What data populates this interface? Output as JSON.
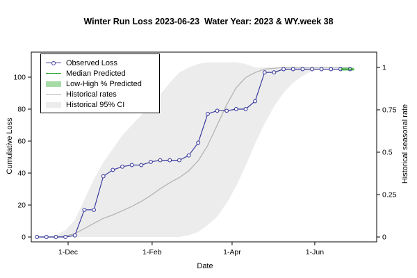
{
  "colors": {
    "observed": "#3b3b9f",
    "median": "#1f9d1f",
    "low_high": "#a6dba6",
    "hist_rate": "#b4b4b4",
    "hist_ci": "#ececec",
    "frame": "#000000"
  },
  "chart_data": {
    "type": "line",
    "title": "Winter Run Loss 2023-06-23  Water Year: 2023 & WY.week 38",
    "xlabel": "Date",
    "ylabel": "Cumulative Loss",
    "y2label": "Historical seasonal rate",
    "grid": false,
    "ylim_left": [
      -4,
      116
    ],
    "y2lim": [
      0,
      1.09
    ],
    "x_ticks": [
      {
        "date": "2022-12-01",
        "label": "1-Dec"
      },
      {
        "date": "2023-02-01",
        "label": "1-Feb"
      },
      {
        "date": "2023-04-01",
        "label": "1-Apr"
      },
      {
        "date": "2023-06-01",
        "label": "1-Jun"
      }
    ],
    "y_ticks_left": [
      0,
      20,
      40,
      60,
      80,
      100
    ],
    "y_ticks_right": [
      {
        "value": 0,
        "label": "0"
      },
      {
        "value": 0.25,
        "label": "0.25"
      },
      {
        "value": 0.5,
        "label": "0.5"
      },
      {
        "value": 0.75,
        "label": "0.75"
      },
      {
        "value": 1,
        "label": "1"
      }
    ],
    "legend": {
      "position": "top-left",
      "items": [
        {
          "label": "Observed Loss",
          "style": "line-marker"
        },
        {
          "label": "Median Predicted",
          "style": "line"
        },
        {
          "label": "Low-High % Predicted",
          "style": "band"
        },
        {
          "label": "Historical rates",
          "style": "line"
        },
        {
          "label": "Historical 95% CI",
          "style": "band"
        }
      ]
    },
    "series": [
      {
        "name": "Observed Loss",
        "axis": "left",
        "type": "line-marker",
        "dates": [
          "2022-11-08",
          "2022-11-15",
          "2022-11-22",
          "2022-11-29",
          "2022-12-06",
          "2022-12-13",
          "2022-12-20",
          "2022-12-27",
          "2023-01-03",
          "2023-01-10",
          "2023-01-17",
          "2023-01-24",
          "2023-01-31",
          "2023-02-07",
          "2023-02-14",
          "2023-02-21",
          "2023-02-28",
          "2023-03-07",
          "2023-03-14",
          "2023-03-21",
          "2023-03-28",
          "2023-04-04",
          "2023-04-11",
          "2023-04-18",
          "2023-04-25",
          "2023-05-02",
          "2023-05-09",
          "2023-05-16",
          "2023-05-23",
          "2023-05-30",
          "2023-06-06",
          "2023-06-13",
          "2023-06-20",
          "2023-06-27"
        ],
        "values": [
          0,
          0,
          0,
          0,
          1,
          17,
          17,
          38,
          42,
          44,
          45,
          45,
          47,
          48,
          48,
          48,
          51,
          59,
          77,
          79,
          79,
          80,
          80,
          85,
          103,
          103,
          105,
          105,
          105,
          105,
          105,
          105,
          105,
          105
        ]
      },
      {
        "name": "Median Predicted",
        "axis": "left",
        "type": "line",
        "dates": [
          "2023-06-20",
          "2023-06-30"
        ],
        "values": [
          105,
          105
        ]
      },
      {
        "name": "Low-High % Predicted",
        "axis": "left",
        "type": "band",
        "dates": [
          "2023-06-20",
          "2023-06-30"
        ],
        "low": [
          104,
          104
        ],
        "high": [
          106,
          106
        ]
      },
      {
        "name": "Historical rates",
        "axis": "right",
        "type": "line",
        "dates": [
          "2022-11-08",
          "2022-11-15",
          "2022-11-22",
          "2022-11-29",
          "2022-12-06",
          "2022-12-13",
          "2022-12-20",
          "2022-12-27",
          "2023-01-03",
          "2023-01-10",
          "2023-01-17",
          "2023-01-24",
          "2023-01-31",
          "2023-02-07",
          "2023-02-14",
          "2023-02-21",
          "2023-02-28",
          "2023-03-07",
          "2023-03-14",
          "2023-03-21",
          "2023-03-28",
          "2023-04-04",
          "2023-04-11",
          "2023-04-18",
          "2023-04-25",
          "2023-05-02",
          "2023-05-09",
          "2023-05-16",
          "2023-05-23",
          "2023-05-30",
          "2023-06-06",
          "2023-06-13",
          "2023-06-20",
          "2023-06-27"
        ],
        "values": [
          0,
          0,
          0,
          0.005,
          0.02,
          0.05,
          0.08,
          0.11,
          0.13,
          0.155,
          0.18,
          0.21,
          0.245,
          0.285,
          0.32,
          0.35,
          0.39,
          0.45,
          0.54,
          0.66,
          0.78,
          0.88,
          0.94,
          0.97,
          0.99,
          0.995,
          1,
          1,
          1,
          1,
          1,
          1,
          1,
          1
        ]
      },
      {
        "name": "Historical 95% CI",
        "axis": "right",
        "type": "band",
        "dates": [
          "2022-11-08",
          "2022-11-15",
          "2022-11-22",
          "2022-11-29",
          "2022-12-06",
          "2022-12-13",
          "2022-12-20",
          "2022-12-27",
          "2023-01-03",
          "2023-01-10",
          "2023-01-17",
          "2023-01-24",
          "2023-01-31",
          "2023-02-07",
          "2023-02-14",
          "2023-02-21",
          "2023-02-28",
          "2023-03-07",
          "2023-03-14",
          "2023-03-21",
          "2023-03-28",
          "2023-04-04",
          "2023-04-11",
          "2023-04-18",
          "2023-04-25",
          "2023-05-02",
          "2023-05-09",
          "2023-05-16",
          "2023-05-23",
          "2023-05-30",
          "2023-06-06",
          "2023-06-13",
          "2023-06-20",
          "2023-06-27"
        ],
        "low": [
          0,
          0,
          0,
          0,
          0,
          0,
          0,
          0,
          0,
          0,
          0,
          0,
          0,
          0,
          0,
          0,
          0.01,
          0.03,
          0.07,
          0.12,
          0.2,
          0.3,
          0.42,
          0.55,
          0.67,
          0.77,
          0.85,
          0.91,
          0.95,
          0.98,
          1,
          1,
          1,
          1
        ],
        "high": [
          0,
          0,
          0.01,
          0.04,
          0.1,
          0.22,
          0.34,
          0.44,
          0.52,
          0.6,
          0.66,
          0.72,
          0.78,
          0.84,
          0.91,
          0.97,
          1.0,
          1.02,
          1.03,
          1.03,
          1.03,
          1.03,
          1.02,
          1.0,
          1.0,
          1.0,
          1.0,
          1.0,
          1.0,
          1.0,
          1.0,
          1.0,
          1.0,
          1.0
        ]
      }
    ]
  }
}
